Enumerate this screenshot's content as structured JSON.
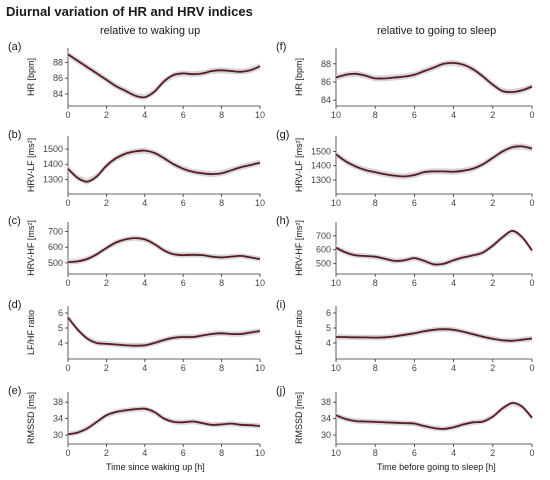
{
  "figure": {
    "title": "Diurnal variation of HR and HRV indices",
    "left_column_title": "relative to waking up",
    "right_column_title": "relative to going to sleep",
    "left_xlabel": "Time since waking up [h]",
    "right_xlabel": "Time before going to sleep [h]"
  },
  "colors": {
    "line": "#5a1a24",
    "band": "#cfcfcf",
    "axis": "#333333"
  },
  "chart_data": [
    {
      "type": "line",
      "panel": "(a)",
      "ylabel": "HR [bpm]",
      "xlim": [
        0,
        10
      ],
      "ylim": [
        83,
        89.3
      ],
      "yticks": [
        84,
        86,
        88
      ],
      "xticks": [
        0,
        2,
        4,
        6,
        8,
        10
      ],
      "x_reversed": false,
      "x": [
        0,
        0.5,
        1,
        1.5,
        2,
        2.5,
        3,
        3.5,
        4,
        4.5,
        5,
        5.5,
        6,
        6.5,
        7,
        7.5,
        8,
        8.5,
        9,
        9.5,
        10
      ],
      "y": [
        89.0,
        88.2,
        87.4,
        86.6,
        85.8,
        85.0,
        84.4,
        83.8,
        83.6,
        84.3,
        85.6,
        86.4,
        86.6,
        86.5,
        86.6,
        86.9,
        87.0,
        86.9,
        86.8,
        87.0,
        87.5
      ]
    },
    {
      "type": "line",
      "panel": "(b)",
      "ylabel": "HRV-LF [ms²]",
      "xlim": [
        0,
        10
      ],
      "ylim": [
        1230,
        1560
      ],
      "yticks": [
        1300,
        1400,
        1500
      ],
      "xticks": [
        0,
        2,
        4,
        6,
        8,
        10
      ],
      "x_reversed": false,
      "x": [
        0,
        0.5,
        1,
        1.5,
        2,
        2.5,
        3,
        3.5,
        4,
        4.5,
        5,
        5.5,
        6,
        6.5,
        7,
        7.5,
        8,
        8.5,
        9,
        9.5,
        10
      ],
      "y": [
        1370,
        1310,
        1285,
        1320,
        1390,
        1440,
        1470,
        1485,
        1490,
        1475,
        1440,
        1400,
        1370,
        1350,
        1340,
        1335,
        1340,
        1360,
        1380,
        1395,
        1410
      ]
    },
    {
      "type": "line",
      "panel": "(c)",
      "ylabel": "HRV-HF [ms²]",
      "xlim": [
        0,
        10
      ],
      "ylim": [
        455,
        735
      ],
      "yticks": [
        500,
        600,
        700
      ],
      "xticks": [
        0,
        2,
        4,
        6,
        8,
        10
      ],
      "x_reversed": false,
      "x": [
        0,
        0.5,
        1,
        1.5,
        2,
        2.5,
        3,
        3.5,
        4,
        4.5,
        5,
        5.5,
        6,
        6.5,
        7,
        7.5,
        8,
        8.5,
        9,
        9.5,
        10
      ],
      "y": [
        505,
        510,
        525,
        555,
        595,
        630,
        650,
        658,
        650,
        620,
        580,
        555,
        550,
        552,
        550,
        540,
        535,
        540,
        545,
        535,
        525
      ]
    },
    {
      "type": "line",
      "panel": "(d)",
      "ylabel": "LF/HF ratio",
      "xlim": [
        0,
        10
      ],
      "ylim": [
        3.2,
        6.2
      ],
      "yticks": [
        4,
        5,
        6
      ],
      "xticks": [
        0,
        2,
        4,
        6,
        8,
        10
      ],
      "x_reversed": false,
      "x": [
        0,
        0.5,
        1,
        1.5,
        2,
        2.5,
        3,
        3.5,
        4,
        4.5,
        5,
        5.5,
        6,
        6.5,
        7,
        7.5,
        8,
        8.5,
        9,
        9.5,
        10
      ],
      "y": [
        5.7,
        4.9,
        4.3,
        4.0,
        3.95,
        3.9,
        3.85,
        3.82,
        3.85,
        4.0,
        4.2,
        4.35,
        4.4,
        4.4,
        4.5,
        4.6,
        4.65,
        4.6,
        4.6,
        4.7,
        4.8
      ]
    },
    {
      "type": "line",
      "panel": "(e)",
      "ylabel": "RMSSD [ms]",
      "xlim": [
        0,
        10
      ],
      "ylim": [
        28.8,
        39.5
      ],
      "yticks": [
        30,
        34,
        38
      ],
      "xticks": [
        0,
        2,
        4,
        6,
        8,
        10
      ],
      "x_reversed": false,
      "x": [
        0,
        0.5,
        1,
        1.5,
        2,
        2.5,
        3,
        3.5,
        4,
        4.5,
        5,
        5.5,
        6,
        6.5,
        7,
        7.5,
        8,
        8.5,
        9,
        9.5,
        10
      ],
      "y": [
        30.2,
        30.6,
        31.6,
        33.2,
        34.8,
        35.6,
        36.0,
        36.3,
        36.4,
        35.6,
        34.0,
        33.2,
        33.1,
        33.3,
        32.9,
        32.5,
        32.6,
        32.8,
        32.5,
        32.4,
        32.2
      ]
    },
    {
      "type": "line",
      "panel": "(f)",
      "ylabel": "HR [bpm]",
      "xlim": [
        10,
        0
      ],
      "ylim": [
        83.8,
        89.3
      ],
      "yticks": [
        84,
        86,
        88
      ],
      "xticks": [
        10,
        8,
        6,
        4,
        2,
        0
      ],
      "x_reversed": true,
      "x": [
        10,
        9.5,
        9,
        8.5,
        8,
        7.5,
        7,
        6.5,
        6,
        5.5,
        5,
        4.5,
        4,
        3.5,
        3,
        2.5,
        2,
        1.5,
        1,
        0.5,
        0
      ],
      "y": [
        86.5,
        86.8,
        86.9,
        86.7,
        86.4,
        86.4,
        86.5,
        86.6,
        86.8,
        87.2,
        87.6,
        88.0,
        88.1,
        87.9,
        87.4,
        86.6,
        85.7,
        85.0,
        84.9,
        85.1,
        85.5
      ]
    },
    {
      "type": "line",
      "panel": "(g)",
      "ylabel": "HRV-LF [ms²]",
      "xlim": [
        10,
        0
      ],
      "ylim": [
        1230,
        1580
      ],
      "yticks": [
        1300,
        1400,
        1500
      ],
      "xticks": [
        10,
        8,
        6,
        4,
        2,
        0
      ],
      "x_reversed": true,
      "x": [
        10,
        9.5,
        9,
        8.5,
        8,
        7.5,
        7,
        6.5,
        6,
        5.5,
        5,
        4.5,
        4,
        3.5,
        3,
        2.5,
        2,
        1.5,
        1,
        0.5,
        0
      ],
      "y": [
        1480,
        1430,
        1395,
        1370,
        1355,
        1340,
        1330,
        1325,
        1335,
        1355,
        1360,
        1360,
        1358,
        1365,
        1380,
        1410,
        1455,
        1500,
        1530,
        1535,
        1520
      ]
    },
    {
      "type": "line",
      "panel": "(h)",
      "ylabel": "HRV-HF [ms²]",
      "xlim": [
        10,
        0
      ],
      "ylim": [
        455,
        770
      ],
      "yticks": [
        500,
        600,
        700
      ],
      "xticks": [
        10,
        8,
        6,
        4,
        2,
        0
      ],
      "x_reversed": true,
      "x": [
        10,
        9.5,
        9,
        8.5,
        8,
        7.5,
        7,
        6.5,
        6,
        5.5,
        5,
        4.5,
        4,
        3.5,
        3,
        2.5,
        2,
        1.5,
        1,
        0.5,
        0
      ],
      "y": [
        615,
        580,
        560,
        555,
        550,
        535,
        520,
        525,
        540,
        520,
        495,
        500,
        525,
        545,
        560,
        580,
        630,
        690,
        735,
        690,
        595
      ]
    },
    {
      "type": "line",
      "panel": "(i)",
      "ylabel": "LF/HF ratio",
      "xlim": [
        10,
        0
      ],
      "ylim": [
        3.2,
        6.2
      ],
      "yticks": [
        4,
        5,
        6
      ],
      "xticks": [
        10,
        8,
        6,
        4,
        2,
        0
      ],
      "x_reversed": true,
      "x": [
        10,
        9.5,
        9,
        8.5,
        8,
        7.5,
        7,
        6.5,
        6,
        5.5,
        5,
        4.5,
        4,
        3.5,
        3,
        2.5,
        2,
        1.5,
        1,
        0.5,
        0
      ],
      "y": [
        4.4,
        4.39,
        4.38,
        4.37,
        4.36,
        4.38,
        4.45,
        4.55,
        4.65,
        4.78,
        4.88,
        4.92,
        4.88,
        4.75,
        4.58,
        4.42,
        4.28,
        4.18,
        4.15,
        4.22,
        4.3
      ]
    },
    {
      "type": "line",
      "panel": "(j)",
      "ylabel": "RMSSD [ms]",
      "xlim": [
        10,
        0
      ],
      "ylim": [
        28.8,
        39.5
      ],
      "yticks": [
        30,
        34,
        38
      ],
      "xticks": [
        10,
        8,
        6,
        4,
        2,
        0
      ],
      "x_reversed": true,
      "x": [
        10,
        9.5,
        9,
        8.5,
        8,
        7.5,
        7,
        6.5,
        6,
        5.5,
        5,
        4.5,
        4,
        3.5,
        3,
        2.5,
        2,
        1.5,
        1,
        0.5,
        0
      ],
      "y": [
        34.8,
        33.9,
        33.4,
        33.3,
        33.2,
        33.1,
        33.0,
        32.9,
        32.8,
        32.2,
        31.7,
        31.5,
        31.9,
        32.6,
        33.1,
        33.3,
        34.5,
        36.5,
        37.8,
        36.9,
        34.2
      ]
    }
  ]
}
